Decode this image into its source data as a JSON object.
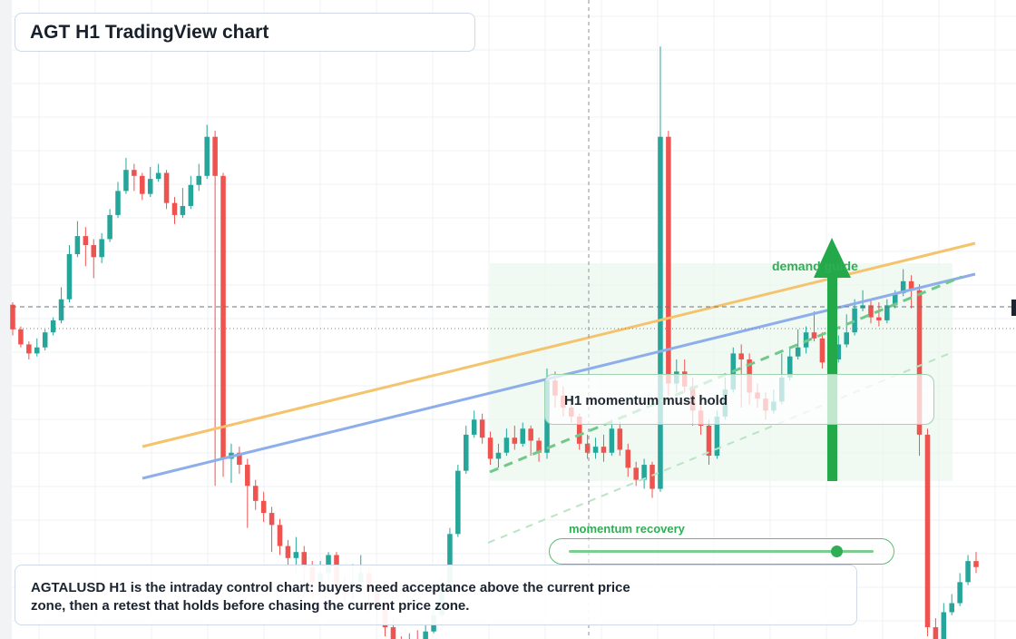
{
  "title": "AGT H1 TradingView chart",
  "caption": "AGTALUSD H1 is the intraday control chart: buyers need acceptance above the current price zone, then a retest that holds before chasing the current price zone.",
  "callout": "H1 momentum must hold",
  "zone_label": "demand guide",
  "recovery_label": "momentum recovery",
  "momentum_level": 0.88,
  "colors": {
    "up": "#26a69a",
    "down": "#ef5350",
    "grid": "#eef1f4",
    "resistance_line": "#f5c36b",
    "trend_line": "#8daeea",
    "guide_green": "#2fae55",
    "zone_fill": "#e9f7ec"
  },
  "chart_data": {
    "type": "candlestick",
    "title": "AGT H1 TradingView chart",
    "x_unit": "bar index (H1)",
    "ylim": [
      0,
      100
    ],
    "x_range": [
      -0.5,
      119.5
    ],
    "grid": true,
    "candles": [
      [
        55.1,
        51.0,
        55.5,
        50.0
      ],
      [
        51.0,
        48.5,
        51.5,
        48.0
      ],
      [
        48.5,
        47.0,
        49.0,
        46.0
      ],
      [
        47.0,
        48.0,
        49.5,
        46.5
      ],
      [
        48.0,
        50.5,
        51.0,
        47.5
      ],
      [
        50.5,
        52.5,
        53.0,
        50.0
      ],
      [
        52.5,
        56.0,
        58.0,
        52.0
      ],
      [
        56.0,
        63.5,
        65.0,
        55.5
      ],
      [
        63.5,
        66.5,
        69.0,
        63.0
      ],
      [
        66.5,
        65.0,
        68.0,
        61.5
      ],
      [
        65.0,
        63.0,
        66.0,
        59.5
      ],
      [
        63.0,
        66.0,
        67.0,
        62.0
      ],
      [
        66.0,
        70.0,
        71.0,
        65.5
      ],
      [
        70.0,
        74.0,
        75.5,
        69.5
      ],
      [
        74.0,
        77.5,
        79.5,
        73.5
      ],
      [
        77.5,
        76.5,
        78.5,
        74.0
      ],
      [
        76.5,
        73.5,
        77.0,
        72.5
      ],
      [
        73.5,
        76.0,
        78.0,
        73.0
      ],
      [
        76.0,
        77.0,
        78.5,
        75.5
      ],
      [
        77.0,
        72.0,
        77.5,
        71.0
      ],
      [
        72.0,
        70.0,
        73.0,
        68.5
      ],
      [
        70.0,
        71.5,
        74.5,
        69.5
      ],
      [
        71.5,
        75.0,
        76.5,
        71.0
      ],
      [
        75.0,
        76.5,
        78.5,
        74.0
      ],
      [
        76.5,
        83.0,
        85.0,
        76.0
      ],
      [
        83.0,
        76.5,
        84.0,
        25.0
      ],
      [
        76.5,
        29.5,
        77.0,
        26.5
      ],
      [
        29.5,
        30.5,
        32.0,
        25.5
      ],
      [
        30.5,
        28.5,
        31.5,
        27.0
      ],
      [
        28.5,
        25.0,
        29.5,
        18.0
      ],
      [
        25.0,
        22.5,
        26.0,
        21.0
      ],
      [
        22.5,
        20.5,
        24.0,
        19.0
      ],
      [
        20.5,
        18.5,
        21.5,
        14.0
      ],
      [
        18.5,
        15.0,
        19.5,
        13.5
      ],
      [
        15.0,
        13.0,
        16.0,
        11.5
      ],
      [
        13.0,
        14.0,
        16.5,
        10.5
      ],
      [
        14.0,
        11.5,
        15.0,
        7.0
      ],
      [
        11.5,
        9.0,
        12.5,
        6.5
      ],
      [
        9.0,
        10.5,
        12.5,
        8.0
      ],
      [
        10.5,
        13.5,
        14.0,
        9.0
      ],
      [
        13.5,
        8.5,
        14.0,
        6.0
      ],
      [
        8.5,
        7.5,
        10.0,
        5.5
      ],
      [
        7.5,
        9.0,
        12.0,
        6.0
      ],
      [
        9.0,
        10.5,
        13.5,
        8.0
      ],
      [
        10.5,
        7.5,
        11.5,
        4.0
      ],
      [
        7.5,
        5.0,
        8.5,
        2.0
      ],
      [
        5.0,
        1.5,
        6.0,
        0.0
      ],
      [
        1.5,
        -1.0,
        3.0,
        -2.0
      ],
      [
        -1.0,
        -1.8,
        0.0,
        -2.5
      ],
      [
        -1.8,
        -0.8,
        0.5,
        -2.0
      ],
      [
        -0.8,
        -1.5,
        1.0,
        -2.5
      ],
      [
        -1.5,
        0.8,
        2.0,
        -2.0
      ],
      [
        0.8,
        3.5,
        5.0,
        0.5
      ],
      [
        3.5,
        8.5,
        9.5,
        3.0
      ],
      [
        8.5,
        17.0,
        18.0,
        8.0
      ],
      [
        17.0,
        27.5,
        28.5,
        16.5
      ],
      [
        27.5,
        33.5,
        35.0,
        27.0
      ],
      [
        33.5,
        36.0,
        37.5,
        33.0
      ],
      [
        36.0,
        33.0,
        37.0,
        32.0
      ],
      [
        33.0,
        29.5,
        34.0,
        28.5
      ],
      [
        29.5,
        30.5,
        32.0,
        28.0
      ],
      [
        30.5,
        33.0,
        34.5,
        30.0
      ],
      [
        33.0,
        32.0,
        35.0,
        31.0
      ],
      [
        32.0,
        34.5,
        35.5,
        31.5
      ],
      [
        34.5,
        32.5,
        35.0,
        30.0
      ],
      [
        32.5,
        30.5,
        33.0,
        29.0
      ],
      [
        30.5,
        42.5,
        44.5,
        29.5
      ],
      [
        42.5,
        40.0,
        44.0,
        38.0
      ],
      [
        40.0,
        38.0,
        41.5,
        36.5
      ],
      [
        38.0,
        36.5,
        40.0,
        35.5
      ],
      [
        36.5,
        32.0,
        37.0,
        31.0
      ],
      [
        32.0,
        30.5,
        33.5,
        29.5
      ],
      [
        30.5,
        31.5,
        33.0,
        29.5
      ],
      [
        31.5,
        30.5,
        33.5,
        29.0
      ],
      [
        30.5,
        34.5,
        36.0,
        30.0
      ],
      [
        34.5,
        31.0,
        35.5,
        30.0
      ],
      [
        31.0,
        28.0,
        32.0,
        26.5
      ],
      [
        28.0,
        26.0,
        29.0,
        25.0
      ],
      [
        26.0,
        28.5,
        29.5,
        24.5
      ],
      [
        28.5,
        24.5,
        29.0,
        23.0
      ],
      [
        24.5,
        83.0,
        98.0,
        24.0
      ],
      [
        83.0,
        42.0,
        84.0,
        40.0
      ],
      [
        42.0,
        44.0,
        46.0,
        40.5
      ],
      [
        44.0,
        41.5,
        46.0,
        40.5
      ],
      [
        41.5,
        37.5,
        43.0,
        35.0
      ],
      [
        37.5,
        35.0,
        39.0,
        33.5
      ],
      [
        35.0,
        30.0,
        36.0,
        28.5
      ],
      [
        30.0,
        36.5,
        37.5,
        29.5
      ],
      [
        36.5,
        41.0,
        43.0,
        36.0
      ],
      [
        41.0,
        47.0,
        48.0,
        40.5
      ],
      [
        47.0,
        46.0,
        48.5,
        38.0
      ],
      [
        46.0,
        40.5,
        47.0,
        38.5
      ],
      [
        40.5,
        39.5,
        42.0,
        38.0
      ],
      [
        39.5,
        37.5,
        40.5,
        36.0
      ],
      [
        37.5,
        39.0,
        41.0,
        37.0
      ],
      [
        39.0,
        43.0,
        47.0,
        38.5
      ],
      [
        43.0,
        46.5,
        48.0,
        42.5
      ],
      [
        46.5,
        48.0,
        51.0,
        46.0
      ],
      [
        48.0,
        50.5,
        51.5,
        47.0
      ],
      [
        50.5,
        49.5,
        54.0,
        49.0
      ],
      [
        49.5,
        45.5,
        50.5,
        44.5
      ],
      [
        45.5,
        46.0,
        47.5,
        45.0
      ],
      [
        46.0,
        48.5,
        50.0,
        45.5
      ],
      [
        48.5,
        50.5,
        53.5,
        48.0
      ],
      [
        50.5,
        54.5,
        56.0,
        50.0
      ],
      [
        54.5,
        55.0,
        57.5,
        54.0
      ],
      [
        55.0,
        53.0,
        56.0,
        52.0
      ],
      [
        53.0,
        52.5,
        55.5,
        51.5
      ],
      [
        52.5,
        55.0,
        56.0,
        52.0
      ],
      [
        55.0,
        57.0,
        57.5,
        54.5
      ],
      [
        57.0,
        59.0,
        61.0,
        56.5
      ],
      [
        59.0,
        57.5,
        60.0,
        54.5
      ],
      [
        57.5,
        33.5,
        58.5,
        30.0
      ],
      [
        33.5,
        1.5,
        34.5,
        0.0
      ],
      [
        1.5,
        -1.0,
        3.0,
        -2.0
      ],
      [
        -1.0,
        4.0,
        5.5,
        -1.5
      ],
      [
        4.0,
        5.5,
        7.0,
        3.5
      ],
      [
        5.5,
        9.0,
        10.5,
        5.0
      ],
      [
        9.0,
        12.5,
        13.5,
        8.5
      ],
      [
        12.5,
        11.5,
        14.0,
        10.5
      ]
    ],
    "lines": [
      {
        "name": "resistance",
        "from": [
          26.5,
          35.5
        ],
        "to": [
          176,
          75
        ]
      },
      {
        "name": "rising support",
        "from": [
          26.5,
          26.5
        ],
        "to": [
          176,
          68.5
        ]
      }
    ]
  }
}
